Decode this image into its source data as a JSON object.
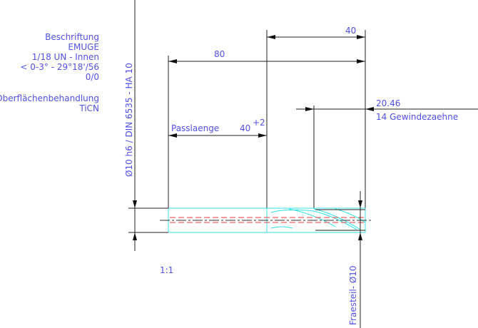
{
  "info_block": {
    "lines": [
      "Beschriftung",
      "EMUGE",
      "1/18 UN - Innen",
      "< 0-3° - 29°18'/56",
      "0/0"
    ],
    "coating_label": "Oberflächenbehandlung",
    "coating_value": "TiCN"
  },
  "dimensions": {
    "shank_diameter": "Ø10 h6 / DIN 6535 - HA 10",
    "overall_length": "80",
    "cutting_length": "40",
    "fit_length_label": "Passlaenge",
    "fit_length_value": "40",
    "fit_length_tolerance": "+2",
    "thread_length": "20.46",
    "thread_teeth": "14 Gewindezaehne",
    "cutter_diameter": "Fraesteil- Ø10"
  },
  "scale": "1:1",
  "colors": {
    "text": "#5050e8",
    "tool_outline": "#30e0e8",
    "hidden_line": "#f06060",
    "dimension": "#222222"
  }
}
